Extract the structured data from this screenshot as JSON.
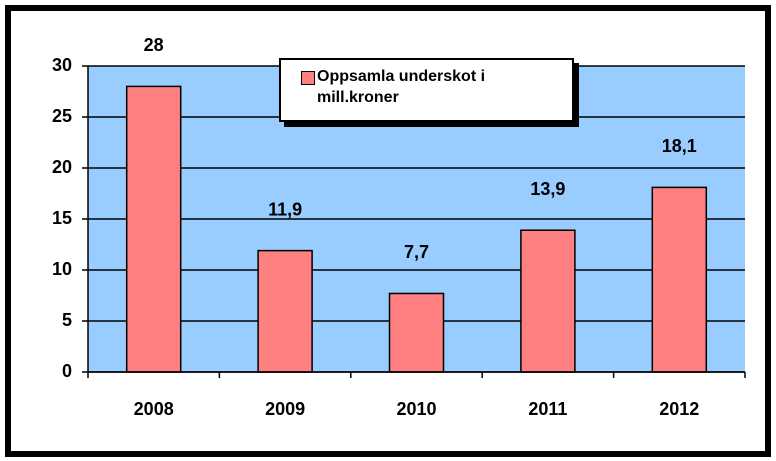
{
  "chart_data": {
    "type": "bar",
    "categories": [
      "2008",
      "2009",
      "2010",
      "2011",
      "2012"
    ],
    "series": [
      {
        "name": "Oppsamla underskot i mill.kroner",
        "color": "#ff8080",
        "values": [
          28,
          11.9,
          7.7,
          13.9,
          18.1
        ],
        "value_labels": [
          "28",
          "11,9",
          "7,7",
          "13,9",
          "18,1"
        ]
      }
    ],
    "ylim": [
      0,
      30
    ],
    "yticks": [
      0,
      5,
      10,
      15,
      20,
      25,
      30
    ],
    "grid": true,
    "legend": "top"
  }
}
